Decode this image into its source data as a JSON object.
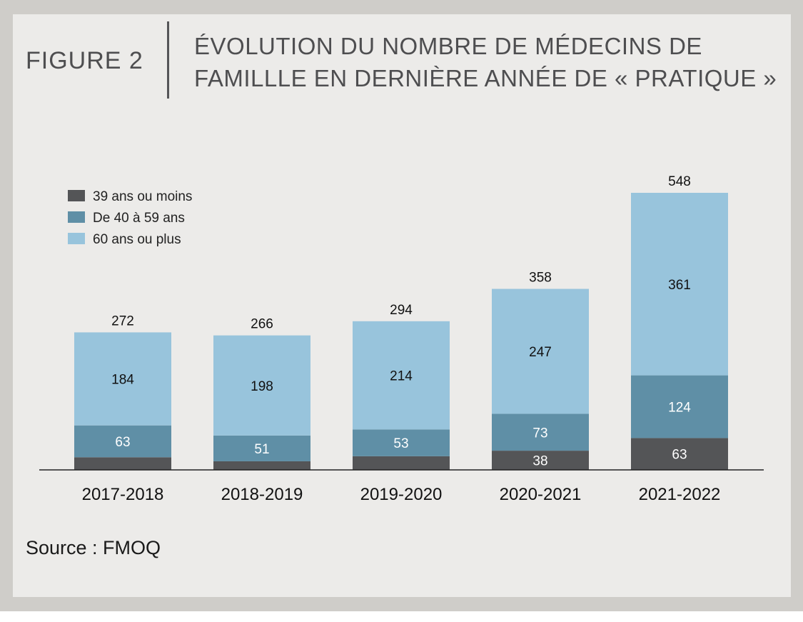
{
  "figure_label": "FIGURE 2",
  "title_lines": [
    "ÉVOLUTION DU NOMBRE DE MÉDECINS DE",
    "FAMILLLE EN DERNIÈRE ANNÉE DE « PRATIQUE »"
  ],
  "source": "Source : FMOQ",
  "chart_data": {
    "type": "bar",
    "stacked": true,
    "categories": [
      "2017-2018",
      "2018-2019",
      "2019-2020",
      "2020-2021",
      "2021-2022"
    ],
    "series": [
      {
        "name": "39 ans ou moins",
        "color": "#545557",
        "values": [
          25,
          17,
          27,
          38,
          63
        ],
        "labels": [
          "",
          "",
          "",
          "38",
          "63"
        ]
      },
      {
        "name": "De 40 à 59 ans",
        "color": "#5f8fa6",
        "values": [
          63,
          51,
          53,
          73,
          124
        ],
        "labels": [
          "63",
          "51",
          "53",
          "73",
          "124"
        ]
      },
      {
        "name": "60 ans ou plus",
        "color": "#98c4dc",
        "values": [
          184,
          198,
          214,
          247,
          361
        ],
        "labels": [
          "184",
          "198",
          "214",
          "247",
          "361"
        ]
      }
    ],
    "totals": [
      272,
      266,
      294,
      358,
      548
    ],
    "ylim": [
      0,
      548
    ],
    "legend_position": "top-left",
    "grid": false
  }
}
